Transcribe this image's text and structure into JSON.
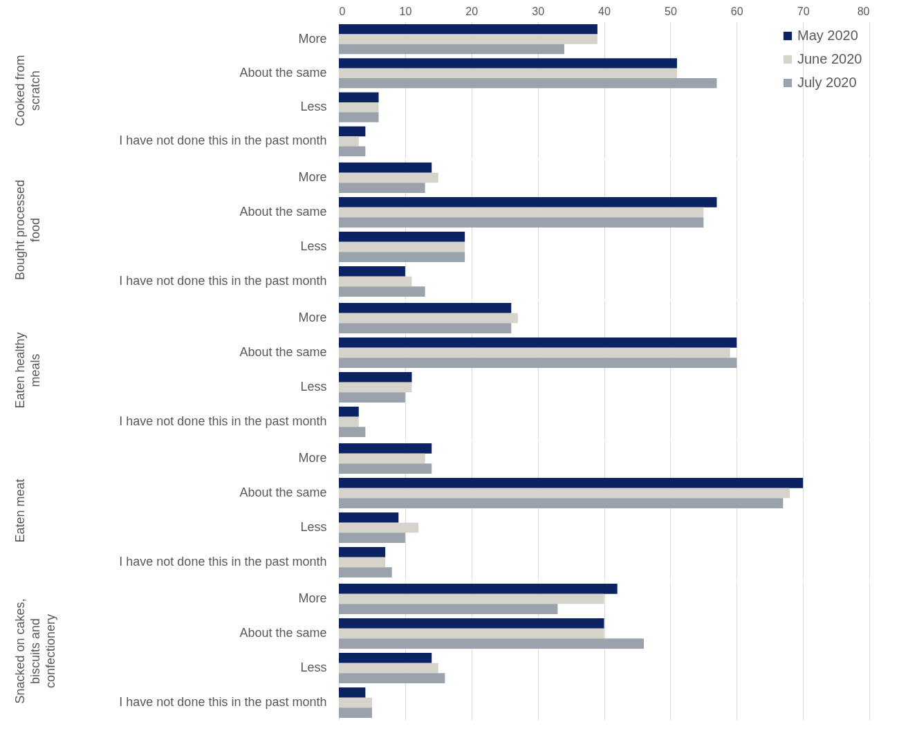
{
  "chart_data": [
    {
      "type": "bar",
      "orientation": "horizontal",
      "ylabel": "Cooked from scratch",
      "categories": [
        "More",
        "About the same",
        "Less",
        "I have not done this in the past month"
      ],
      "xlim": [
        0,
        80
      ],
      "xticks": [
        0,
        10,
        20,
        30,
        40,
        50,
        60,
        70,
        80
      ],
      "grid": "x",
      "legend": "top right",
      "series": [
        {
          "name": "May 2020",
          "color": "#0b2263",
          "values": [
            39,
            51,
            6,
            4
          ]
        },
        {
          "name": "June 2020",
          "color": "#d6d3cb",
          "values": [
            39,
            51,
            6,
            3
          ]
        },
        {
          "name": "July 2020",
          "color": "#9aa3ac",
          "values": [
            34,
            57,
            6,
            4
          ]
        }
      ]
    },
    {
      "type": "bar",
      "orientation": "horizontal",
      "ylabel": "Bought processed food",
      "categories": [
        "More",
        "About the same",
        "Less",
        "I have not done this in the past month"
      ],
      "xlim": [
        0,
        80
      ],
      "xticks": [
        0,
        10,
        20,
        30,
        40,
        50,
        60,
        70,
        80
      ],
      "grid": "x",
      "tick_labels": "y",
      "series": [
        {
          "color": "#0b2263",
          "values": [
            14,
            57,
            19,
            10
          ]
        },
        {
          "color": "#d6d3cb",
          "values": [
            15,
            55,
            19,
            11
          ]
        },
        {
          "color": "#9aa3ac",
          "values": [
            13,
            55,
            19,
            13
          ]
        }
      ]
    },
    {
      "type": "bar",
      "orientation": "horizontal",
      "ylabel": "Eaten healthy meals",
      "categories": [
        "More",
        "About the same",
        "Less",
        "I have not done this in the past month"
      ],
      "xlim": [
        0,
        80
      ],
      "xticks": [
        0,
        10,
        20,
        30,
        40,
        50,
        60,
        70,
        80
      ],
      "grid": "x",
      "tick_labels": "y",
      "series": [
        {
          "color": "#0b2263",
          "values": [
            26,
            60,
            11,
            3
          ]
        },
        {
          "color": "#d6d3cb",
          "values": [
            27,
            59,
            11,
            3
          ]
        },
        {
          "color": "#9aa3ac",
          "values": [
            26,
            60,
            10,
            4
          ]
        }
      ]
    },
    {
      "type": "bar",
      "orientation": "horizontal",
      "ylabel": "Eaten meat",
      "categories": [
        "More",
        "About the same",
        "Less",
        "I have not done this in the past month"
      ],
      "xlim": [
        0,
        80
      ],
      "xticks": [
        0,
        10,
        20,
        30,
        40,
        50,
        60,
        70,
        80
      ],
      "grid": "x",
      "tick_labels": "y",
      "series": [
        {
          "color": "#0b2263",
          "values": [
            14,
            70,
            9,
            7
          ]
        },
        {
          "color": "#d6d3cb",
          "values": [
            13,
            68,
            12,
            7
          ]
        },
        {
          "color": "#9aa3ac",
          "values": [
            14,
            67,
            10,
            8
          ]
        }
      ]
    },
    {
      "type": "bar",
      "orientation": "horizontal",
      "ylabel": "Snacked on cakes, biscuits and confectionery",
      "categories": [
        "More",
        "About the same",
        "Less",
        "I have not done this in the past month"
      ],
      "xlim": [
        0,
        80
      ],
      "xticks": [
        0,
        10,
        20,
        30,
        40,
        50,
        60,
        70,
        80
      ],
      "grid": "x",
      "tick_labels": "y",
      "series": [
        {
          "color": "#0b2263",
          "values": [
            42,
            40,
            14,
            4
          ]
        },
        {
          "color": "#d6d3cb",
          "values": [
            40,
            40,
            15,
            5
          ]
        },
        {
          "color": "#9aa3ac",
          "values": [
            33,
            46,
            16,
            5
          ]
        }
      ]
    }
  ]
}
